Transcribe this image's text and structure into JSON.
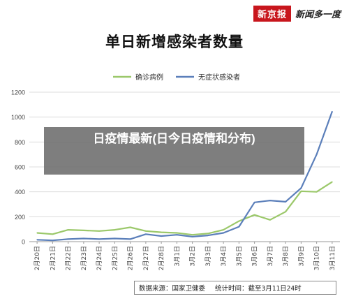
{
  "header": {
    "logo_box": "新京报",
    "logo_text": "新闻多一度"
  },
  "chart_data": {
    "type": "line",
    "title": "单日新增感染者数量",
    "categories": [
      "2月20日",
      "2月21日",
      "2月22日",
      "2月23日",
      "2月24日",
      "2月25日",
      "2月26日",
      "2月27日",
      "2月28日",
      "3月1日",
      "3月2日",
      "3月3日",
      "3月4日",
      "3月5日",
      "3月6日",
      "3月7日",
      "3月8日",
      "3月9日",
      "3月10日",
      "3月11日"
    ],
    "ylim": [
      0,
      1200
    ],
    "yticks": [
      0,
      200,
      400,
      600,
      800,
      1000,
      1200
    ],
    "grid": true,
    "legend_position": "top",
    "series": [
      {
        "name": "确诊病例",
        "color": "#9bc86a",
        "values": [
          70,
          60,
          95,
          90,
          85,
          95,
          115,
          85,
          75,
          70,
          55,
          65,
          95,
          165,
          215,
          175,
          240,
          405,
          400,
          480
        ]
      },
      {
        "name": "无症状感染者",
        "color": "#5b7fba",
        "values": [
          15,
          10,
          20,
          25,
          20,
          25,
          20,
          60,
          45,
          55,
          40,
          50,
          70,
          120,
          315,
          330,
          320,
          430,
          700,
          1045
        ]
      }
    ]
  },
  "footer": {
    "source": "数据来源：国家卫健委",
    "stat_time": "统计时间：截至3月11日24时"
  },
  "overlay": {
    "text": "日​疫情最新(日​今日疫情和分布)"
  }
}
